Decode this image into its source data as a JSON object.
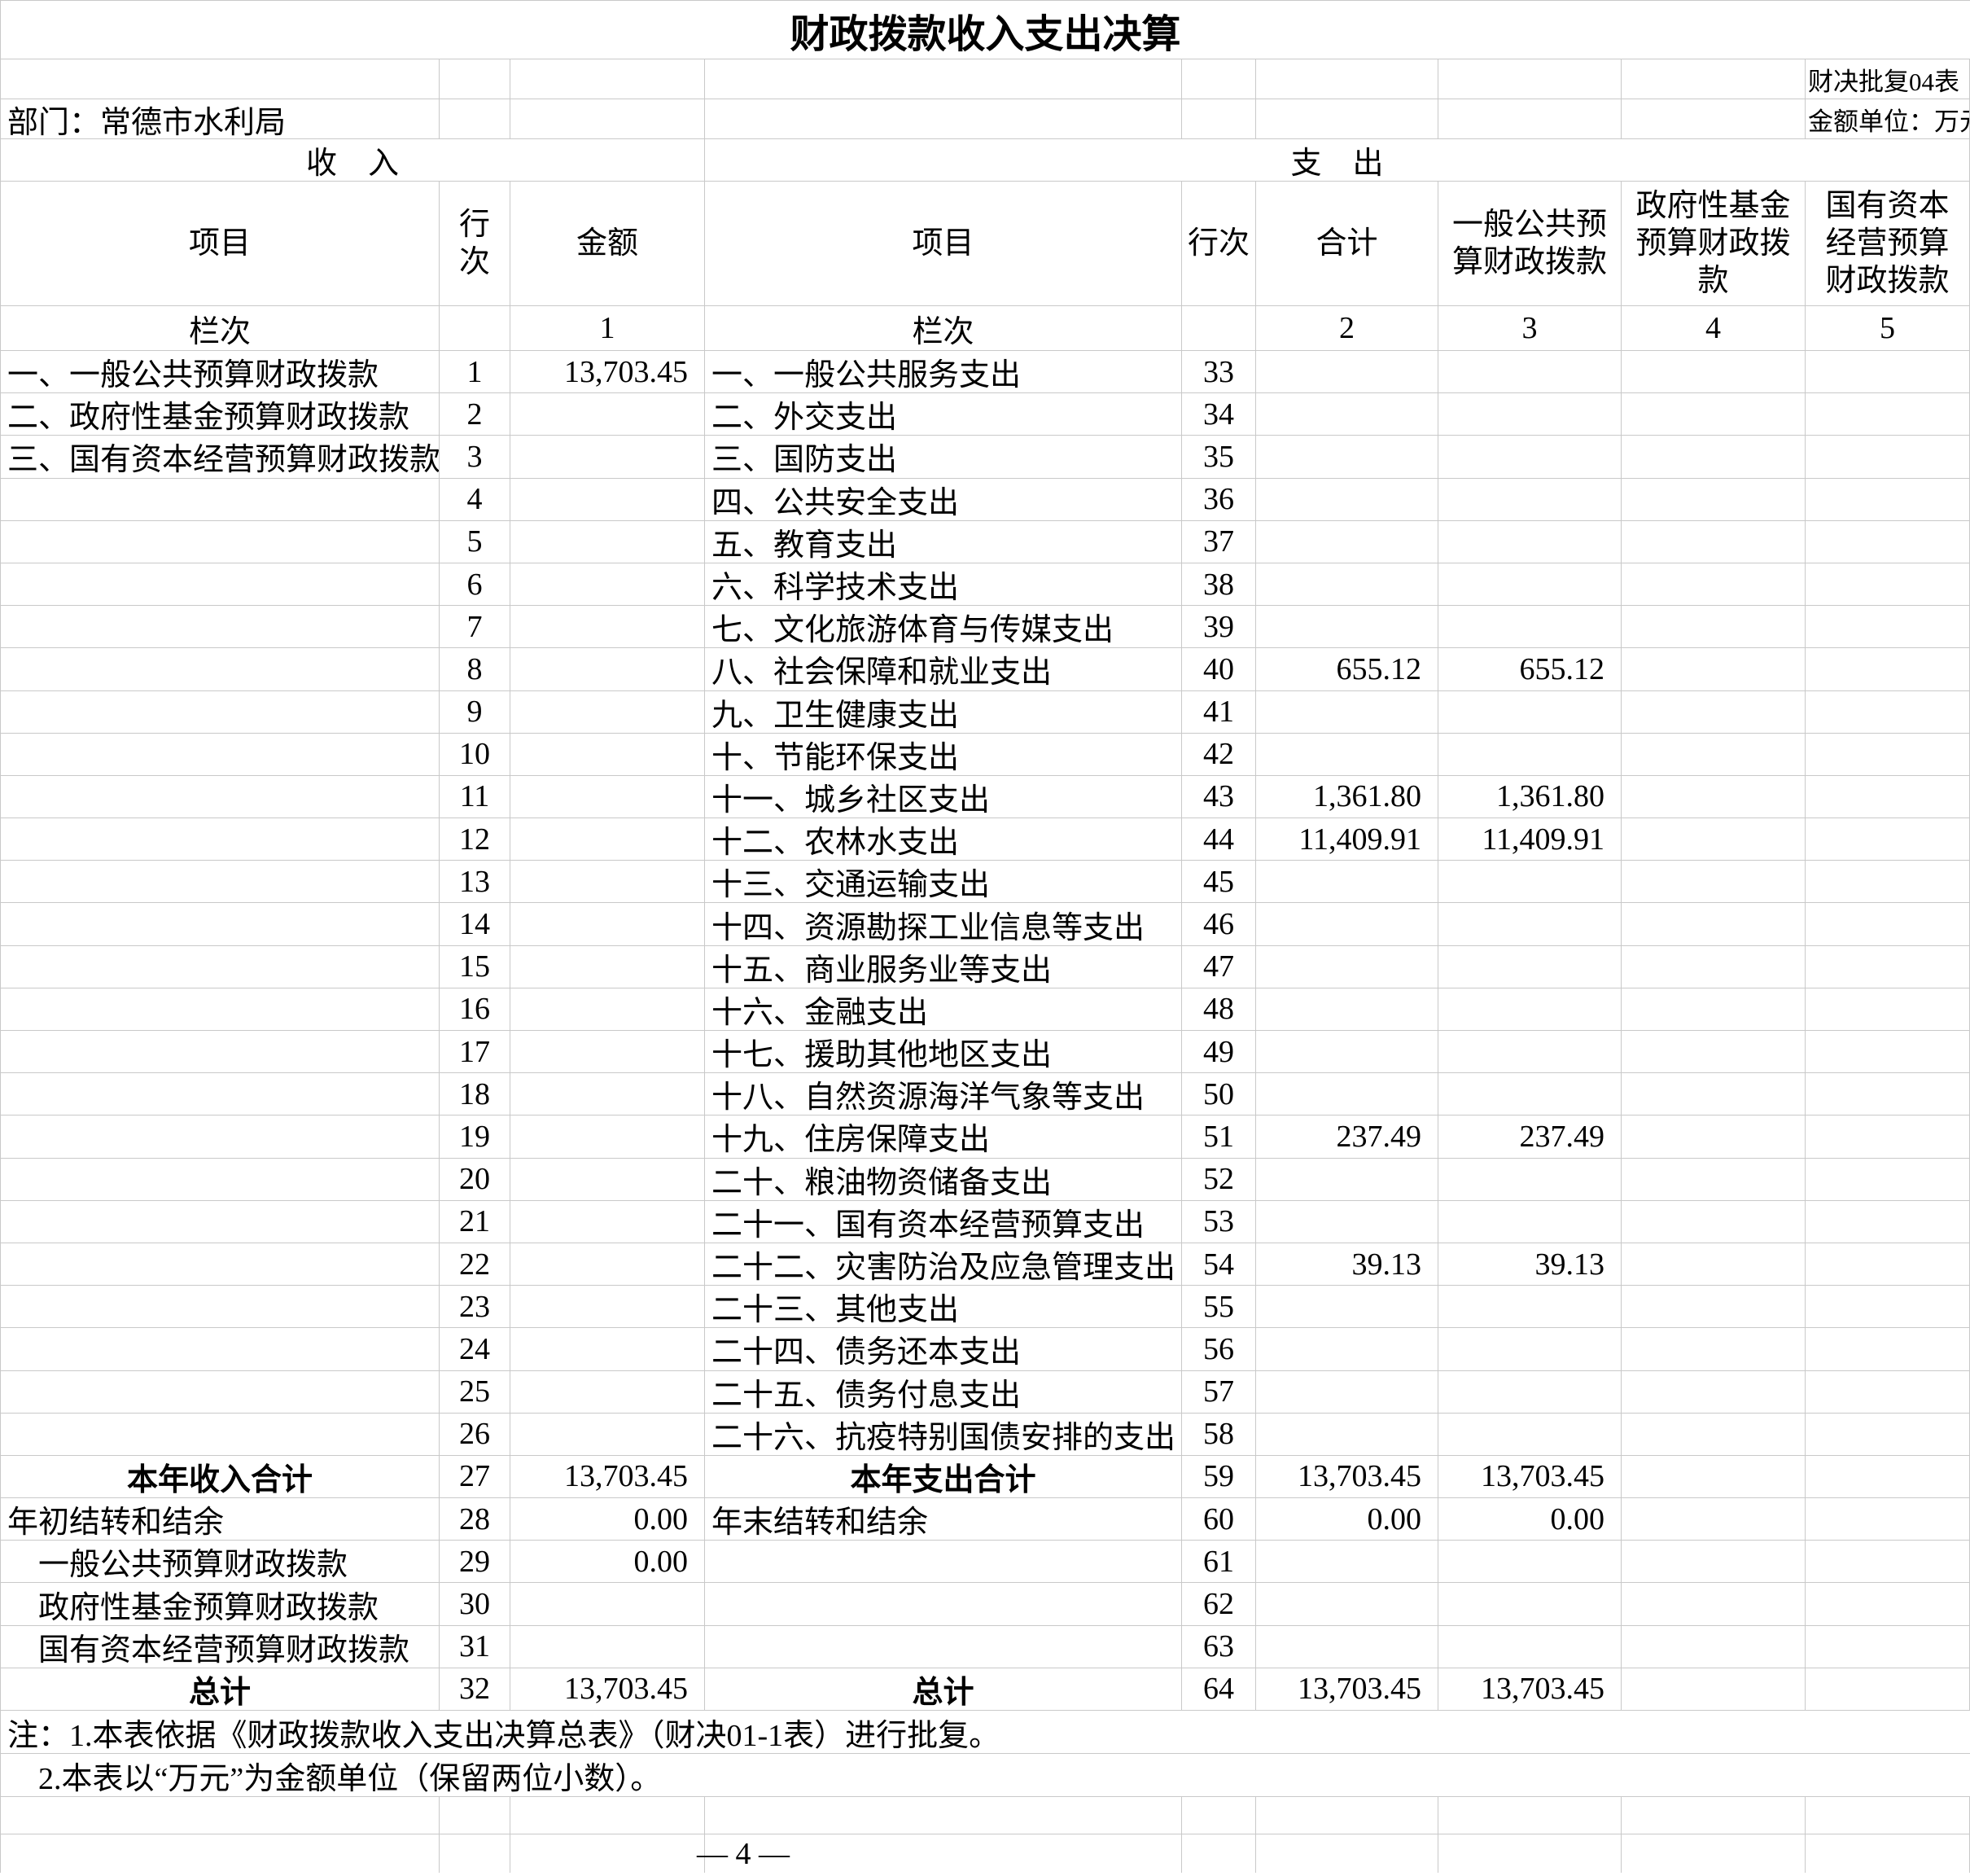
{
  "title": "财政拨款收入支出决算",
  "meta": {
    "table_code": "财决批复04表",
    "department_label": "部门：常德市水利局",
    "unit_label": "金额单位：万元"
  },
  "banners": {
    "income": "收　入",
    "expense": "支　出"
  },
  "headers": {
    "item": "项目",
    "row_no": "行次",
    "amount": "金额",
    "total": "合计",
    "general_budget": "一般公共预算财政拨款",
    "gov_fund": "政府性基金预算财政拨款",
    "state_capital": "国有资本经营预算财政拨款",
    "lanci": "栏次",
    "col_nums": [
      "1",
      "2",
      "3",
      "4",
      "5"
    ]
  },
  "rows": [
    {
      "li": "一、一般公共预算财政拨款",
      "lb": false,
      "ln": "1",
      "la": "13,703.45",
      "ri": "一、一般公共服务支出",
      "rb": false,
      "rn": "33",
      "c2": "",
      "c3": "",
      "c4": "",
      "c5": ""
    },
    {
      "li": "二、政府性基金预算财政拨款",
      "lb": false,
      "ln": "2",
      "la": "",
      "ri": "二、外交支出",
      "rb": false,
      "rn": "34",
      "c2": "",
      "c3": "",
      "c4": "",
      "c5": ""
    },
    {
      "li": "三、国有资本经营预算财政拨款",
      "lb": false,
      "ln": "3",
      "la": "",
      "ri": "三、国防支出",
      "rb": false,
      "rn": "35",
      "c2": "",
      "c3": "",
      "c4": "",
      "c5": ""
    },
    {
      "li": "",
      "lb": false,
      "ln": "4",
      "la": "",
      "ri": "四、公共安全支出",
      "rb": false,
      "rn": "36",
      "c2": "",
      "c3": "",
      "c4": "",
      "c5": ""
    },
    {
      "li": "",
      "lb": false,
      "ln": "5",
      "la": "",
      "ri": "五、教育支出",
      "rb": false,
      "rn": "37",
      "c2": "",
      "c3": "",
      "c4": "",
      "c5": ""
    },
    {
      "li": "",
      "lb": false,
      "ln": "6",
      "la": "",
      "ri": "六、科学技术支出",
      "rb": false,
      "rn": "38",
      "c2": "",
      "c3": "",
      "c4": "",
      "c5": ""
    },
    {
      "li": "",
      "lb": false,
      "ln": "7",
      "la": "",
      "ri": "七、文化旅游体育与传媒支出",
      "rb": false,
      "rn": "39",
      "c2": "",
      "c3": "",
      "c4": "",
      "c5": ""
    },
    {
      "li": "",
      "lb": false,
      "ln": "8",
      "la": "",
      "ri": "八、社会保障和就业支出",
      "rb": false,
      "rn": "40",
      "c2": "655.12",
      "c3": "655.12",
      "c4": "",
      "c5": ""
    },
    {
      "li": "",
      "lb": false,
      "ln": "9",
      "la": "",
      "ri": "九、卫生健康支出",
      "rb": false,
      "rn": "41",
      "c2": "",
      "c3": "",
      "c4": "",
      "c5": ""
    },
    {
      "li": "",
      "lb": false,
      "ln": "10",
      "la": "",
      "ri": "十、节能环保支出",
      "rb": false,
      "rn": "42",
      "c2": "",
      "c3": "",
      "c4": "",
      "c5": ""
    },
    {
      "li": "",
      "lb": false,
      "ln": "11",
      "la": "",
      "ri": "十一、城乡社区支出",
      "rb": false,
      "rn": "43",
      "c2": "1,361.80",
      "c3": "1,361.80",
      "c4": "",
      "c5": ""
    },
    {
      "li": "",
      "lb": false,
      "ln": "12",
      "la": "",
      "ri": "十二、农林水支出",
      "rb": false,
      "rn": "44",
      "c2": "11,409.91",
      "c3": "11,409.91",
      "c4": "",
      "c5": ""
    },
    {
      "li": "",
      "lb": false,
      "ln": "13",
      "la": "",
      "ri": "十三、交通运输支出",
      "rb": false,
      "rn": "45",
      "c2": "",
      "c3": "",
      "c4": "",
      "c5": ""
    },
    {
      "li": "",
      "lb": false,
      "ln": "14",
      "la": "",
      "ri": "十四、资源勘探工业信息等支出",
      "rb": false,
      "rn": "46",
      "c2": "",
      "c3": "",
      "c4": "",
      "c5": ""
    },
    {
      "li": "",
      "lb": false,
      "ln": "15",
      "la": "",
      "ri": "十五、商业服务业等支出",
      "rb": false,
      "rn": "47",
      "c2": "",
      "c3": "",
      "c4": "",
      "c5": ""
    },
    {
      "li": "",
      "lb": false,
      "ln": "16",
      "la": "",
      "ri": "十六、金融支出",
      "rb": false,
      "rn": "48",
      "c2": "",
      "c3": "",
      "c4": "",
      "c5": ""
    },
    {
      "li": "",
      "lb": false,
      "ln": "17",
      "la": "",
      "ri": "十七、援助其他地区支出",
      "rb": false,
      "rn": "49",
      "c2": "",
      "c3": "",
      "c4": "",
      "c5": ""
    },
    {
      "li": "",
      "lb": false,
      "ln": "18",
      "la": "",
      "ri": "十八、自然资源海洋气象等支出",
      "rb": false,
      "rn": "50",
      "c2": "",
      "c3": "",
      "c4": "",
      "c5": ""
    },
    {
      "li": "",
      "lb": false,
      "ln": "19",
      "la": "",
      "ri": "十九、住房保障支出",
      "rb": false,
      "rn": "51",
      "c2": "237.49",
      "c3": "237.49",
      "c4": "",
      "c5": ""
    },
    {
      "li": "",
      "lb": false,
      "ln": "20",
      "la": "",
      "ri": "二十、粮油物资储备支出",
      "rb": false,
      "rn": "52",
      "c2": "",
      "c3": "",
      "c4": "",
      "c5": ""
    },
    {
      "li": "",
      "lb": false,
      "ln": "21",
      "la": "",
      "ri": "二十一、国有资本经营预算支出",
      "rb": false,
      "rn": "53",
      "c2": "",
      "c3": "",
      "c4": "",
      "c5": ""
    },
    {
      "li": "",
      "lb": false,
      "ln": "22",
      "la": "",
      "ri": "二十二、灾害防治及应急管理支出",
      "rb": false,
      "rn": "54",
      "c2": "39.13",
      "c3": "39.13",
      "c4": "",
      "c5": ""
    },
    {
      "li": "",
      "lb": false,
      "ln": "23",
      "la": "",
      "ri": "二十三、其他支出",
      "rb": false,
      "rn": "55",
      "c2": "",
      "c3": "",
      "c4": "",
      "c5": ""
    },
    {
      "li": "",
      "lb": false,
      "ln": "24",
      "la": "",
      "ri": "二十四、债务还本支出",
      "rb": false,
      "rn": "56",
      "c2": "",
      "c3": "",
      "c4": "",
      "c5": ""
    },
    {
      "li": "",
      "lb": false,
      "ln": "25",
      "la": "",
      "ri": "二十五、债务付息支出",
      "rb": false,
      "rn": "57",
      "c2": "",
      "c3": "",
      "c4": "",
      "c5": ""
    },
    {
      "li": "",
      "lb": false,
      "ln": "26",
      "la": "",
      "ri": "二十六、抗疫特别国债安排的支出",
      "rb": false,
      "rn": "58",
      "c2": "",
      "c3": "",
      "c4": "",
      "c5": ""
    },
    {
      "li": "本年收入合计",
      "lb": true,
      "ln": "27",
      "la": "13,703.45",
      "ri": "本年支出合计",
      "rb": true,
      "rn": "59",
      "c2": "13,703.45",
      "c3": "13,703.45",
      "c4": "",
      "c5": ""
    },
    {
      "li": "年初结转和结余",
      "lb": false,
      "ln": "28",
      "la": "0.00",
      "ri": "年末结转和结余",
      "rb": false,
      "rn": "60",
      "c2": "0.00",
      "c3": "0.00",
      "c4": "",
      "c5": ""
    },
    {
      "li": "　一般公共预算财政拨款",
      "lb": false,
      "ln": "29",
      "la": "0.00",
      "ri": "",
      "rb": false,
      "rn": "61",
      "c2": "",
      "c3": "",
      "c4": "",
      "c5": ""
    },
    {
      "li": "　政府性基金预算财政拨款",
      "lb": false,
      "ln": "30",
      "la": "",
      "ri": "",
      "rb": false,
      "rn": "62",
      "c2": "",
      "c3": "",
      "c4": "",
      "c5": ""
    },
    {
      "li": "　国有资本经营预算财政拨款",
      "lb": false,
      "ln": "31",
      "la": "",
      "ri": "",
      "rb": false,
      "rn": "63",
      "c2": "",
      "c3": "",
      "c4": "",
      "c5": ""
    },
    {
      "li": "总计",
      "lb": true,
      "ln": "32",
      "la": "13,703.45",
      "ri": "总计",
      "rb": true,
      "rn": "64",
      "c2": "13,703.45",
      "c3": "13,703.45",
      "c4": "",
      "c5": ""
    }
  ],
  "notes": [
    "注：1.本表依据《财政拨款收入支出决算总表》（财决01-1表）进行批复。",
    "　2.本表以“万元”为金额单位（保留两位小数）。"
  ],
  "page_number": "— 4 —"
}
